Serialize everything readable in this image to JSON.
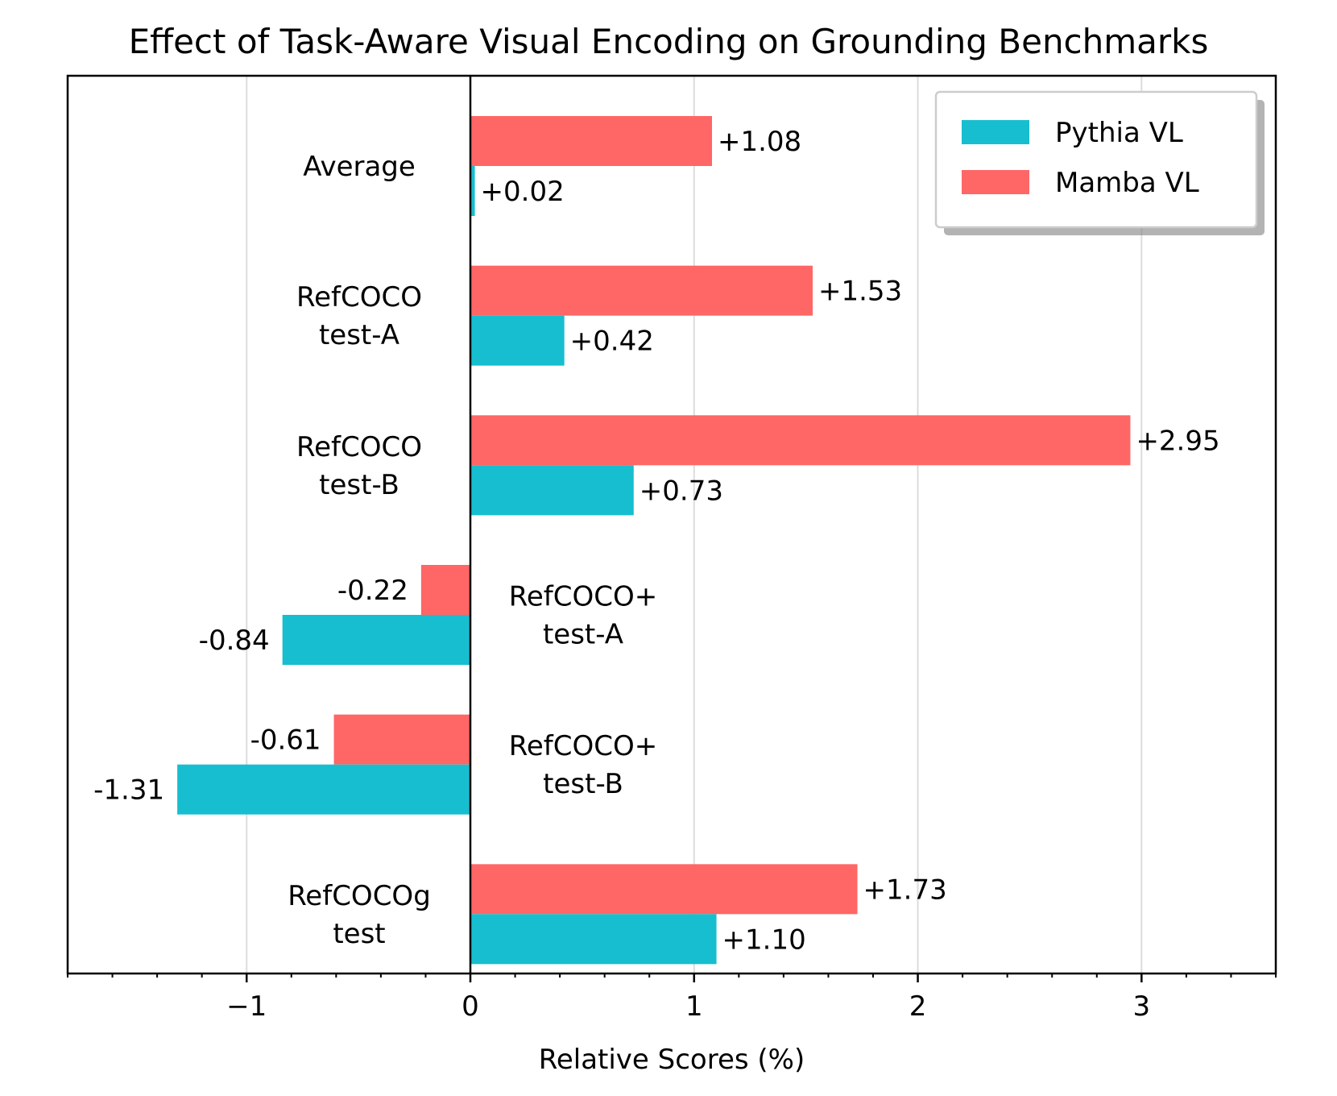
{
  "chart_data": {
    "type": "bar",
    "orientation": "horizontal",
    "title": "Effect of Task-Aware Visual Encoding on Grounding Benchmarks",
    "xlabel": "Relative Scores (%)",
    "ylabel": "",
    "xlim": [
      -1.8,
      3.6
    ],
    "xticks": [
      -1,
      0,
      1,
      2,
      3
    ],
    "xtick_labels": [
      "−1",
      "0",
      "1",
      "2",
      "3"
    ],
    "grid": "x-major",
    "legend_position": "top-right",
    "categories": [
      [
        "Average"
      ],
      [
        "RefCOCO",
        "test-A"
      ],
      [
        "RefCOCO",
        "test-B"
      ],
      [
        "RefCOCO+",
        "test-A"
      ],
      [
        "RefCOCO+",
        "test-B"
      ],
      [
        "RefCOCOg",
        "test"
      ]
    ],
    "series": [
      {
        "name": "Pythia VL",
        "color": "#17becf",
        "values": [
          0.02,
          0.42,
          0.73,
          -0.84,
          -1.31,
          1.1
        ],
        "labels": [
          "+0.02",
          "+0.42",
          "+0.73",
          "-0.84",
          "-1.31",
          "+1.10"
        ]
      },
      {
        "name": "Mamba VL",
        "color": "#ff6666",
        "values": [
          1.08,
          1.53,
          2.95,
          -0.22,
          -0.61,
          1.73
        ],
        "labels": [
          "+1.08",
          "+1.53",
          "+2.95",
          "-0.22",
          "-0.61",
          "+1.73"
        ]
      }
    ]
  }
}
